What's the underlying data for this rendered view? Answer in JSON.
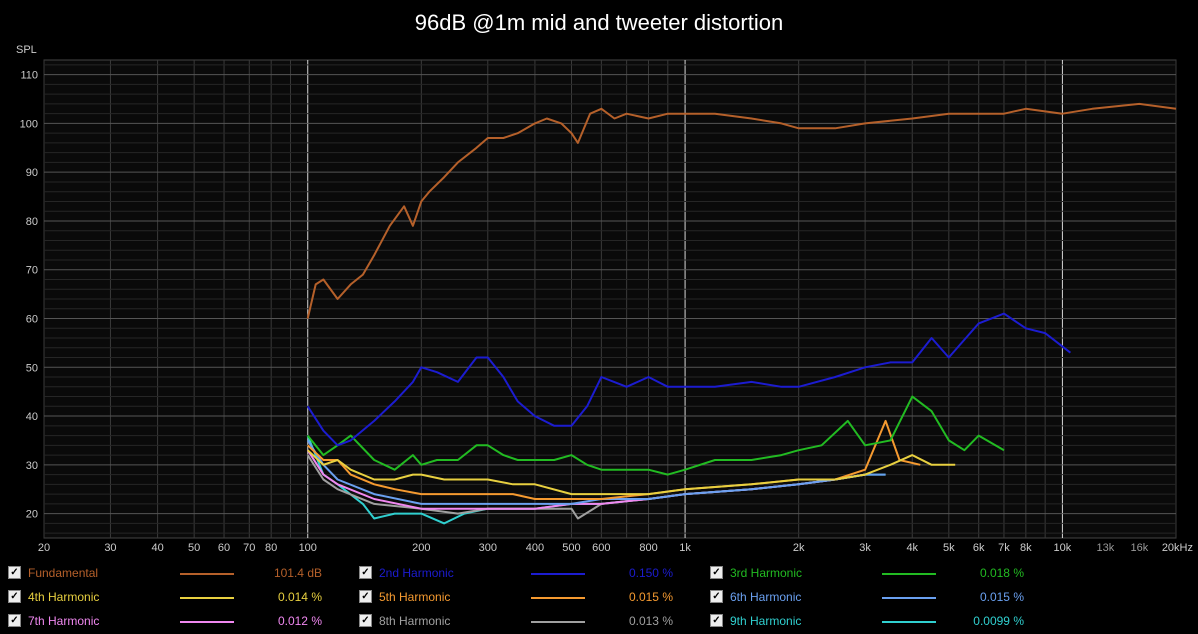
{
  "chart_data": {
    "type": "line",
    "title": "96dB @1m mid and tweeter distortion",
    "ylabel": "SPL",
    "xlabel": "",
    "x_scale": "log",
    "xlim": [
      20,
      20000
    ],
    "ylim": [
      15,
      113
    ],
    "grid": true,
    "x_ticks": [
      "20",
      "30",
      "40",
      "50",
      "60",
      "70",
      "80",
      "100",
      "200",
      "300",
      "400",
      "500",
      "600",
      "800",
      "1k",
      "2k",
      "3k",
      "4k",
      "5k",
      "6k",
      "7k",
      "8k",
      "10k",
      "13k",
      "16k",
      "20kHz"
    ],
    "y_ticks": [
      "20",
      "30",
      "40",
      "50",
      "60",
      "70",
      "80",
      "90",
      "100",
      "110"
    ],
    "series": [
      {
        "name": "Fundamental",
        "color": "#b5602a",
        "value": "101.4 dB",
        "x": [
          100,
          105,
          110,
          120,
          130,
          140,
          150,
          165,
          180,
          190,
          200,
          210,
          230,
          250,
          280,
          300,
          330,
          360,
          400,
          430,
          470,
          500,
          520,
          560,
          600,
          650,
          700,
          800,
          900,
          1000,
          1200,
          1500,
          1800,
          2000,
          2500,
          3000,
          4000,
          5000,
          6000,
          7000,
          8000,
          10000,
          12000,
          16000,
          20000
        ],
        "y": [
          60,
          67,
          68,
          64,
          67,
          69,
          73,
          79,
          83,
          79,
          84,
          86,
          89,
          92,
          95,
          97,
          97,
          98,
          100,
          101,
          100,
          98,
          96,
          102,
          103,
          101,
          102,
          101,
          102,
          102,
          102,
          101,
          100,
          99,
          99,
          100,
          101,
          102,
          102,
          102,
          103,
          102,
          103,
          104,
          103
        ]
      },
      {
        "name": "2nd Harmonic",
        "color": "#1c1cd0",
        "value": "0.150 %",
        "x": [
          100,
          110,
          120,
          130,
          150,
          170,
          190,
          200,
          220,
          250,
          280,
          300,
          330,
          360,
          400,
          450,
          500,
          550,
          600,
          700,
          800,
          900,
          1000,
          1200,
          1500,
          1800,
          2000,
          2500,
          3000,
          3500,
          4000,
          4500,
          5000,
          6000,
          7000,
          8000,
          9000,
          10500
        ],
        "y": [
          42,
          37,
          34,
          35,
          39,
          43,
          47,
          50,
          49,
          47,
          52,
          52,
          48,
          43,
          40,
          38,
          38,
          42,
          48,
          46,
          48,
          46,
          46,
          46,
          47,
          46,
          46,
          48,
          50,
          51,
          51,
          56,
          52,
          59,
          61,
          58,
          57,
          53
        ]
      },
      {
        "name": "3rd Harmonic",
        "color": "#22bb22",
        "value": "0.018 %",
        "x": [
          100,
          110,
          120,
          130,
          150,
          170,
          190,
          200,
          220,
          250,
          280,
          300,
          330,
          360,
          400,
          450,
          500,
          550,
          600,
          700,
          800,
          900,
          1000,
          1200,
          1500,
          1800,
          2000,
          2300,
          2700,
          3000,
          3500,
          4000,
          4500,
          5000,
          5500,
          6000,
          7000
        ],
        "y": [
          36,
          32,
          34,
          36,
          31,
          29,
          32,
          30,
          31,
          31,
          34,
          34,
          32,
          31,
          31,
          31,
          32,
          30,
          29,
          29,
          29,
          28,
          29,
          31,
          31,
          32,
          33,
          34,
          39,
          34,
          35,
          44,
          41,
          35,
          33,
          36,
          33
        ]
      },
      {
        "name": "4th Harmonic",
        "color": "#e8d040",
        "value": "0.014 %",
        "x": [
          100,
          110,
          120,
          130,
          150,
          170,
          190,
          200,
          230,
          260,
          300,
          350,
          400,
          500,
          600,
          800,
          1000,
          1500,
          2000,
          2500,
          3000,
          3500,
          4000,
          4500,
          5200
        ],
        "y": [
          33,
          30,
          31,
          29,
          27,
          27,
          28,
          28,
          27,
          27,
          27,
          26,
          26,
          24,
          24,
          24,
          25,
          26,
          27,
          27,
          28,
          30,
          32,
          30,
          30
        ]
      },
      {
        "name": "5th Harmonic",
        "color": "#f59a30",
        "value": "0.015 %",
        "x": [
          100,
          110,
          120,
          130,
          150,
          170,
          200,
          230,
          260,
          300,
          350,
          400,
          500,
          600,
          800,
          1000,
          1500,
          2000,
          2500,
          3000,
          3400,
          3700,
          4200
        ],
        "y": [
          34,
          31,
          31,
          28,
          26,
          25,
          24,
          24,
          24,
          24,
          24,
          23,
          23,
          23,
          24,
          25,
          26,
          27,
          27,
          29,
          39,
          31,
          30
        ]
      },
      {
        "name": "6th Harmonic",
        "color": "#6aa0f0",
        "value": "0.015 %",
        "x": [
          100,
          110,
          120,
          150,
          200,
          250,
          300,
          400,
          500,
          600,
          800,
          1000,
          1500,
          2000,
          2500,
          3000,
          3400
        ],
        "y": [
          35,
          30,
          27,
          24,
          22,
          22,
          22,
          22,
          22,
          23,
          23,
          24,
          25,
          26,
          27,
          28,
          28
        ]
      },
      {
        "name": "7th Harmonic",
        "color": "#f088f0",
        "value": "0.012 %",
        "x": [
          100,
          110,
          120,
          150,
          200,
          250,
          300,
          400,
          500,
          600,
          800,
          1000,
          1500,
          2000,
          2500,
          3000
        ],
        "y": [
          33,
          28,
          26,
          23,
          21,
          21,
          21,
          21,
          22,
          22,
          23,
          24,
          25,
          26,
          27,
          28
        ]
      },
      {
        "name": "8th Harmonic",
        "color": "#a0a0a0",
        "value": "0.013 %",
        "x": [
          100,
          110,
          120,
          150,
          200,
          250,
          300,
          400,
          500,
          520,
          600,
          800,
          1000,
          1500,
          2000,
          2500,
          3000
        ],
        "y": [
          32,
          27,
          25,
          22,
          21,
          20,
          21,
          21,
          21,
          19,
          22,
          23,
          24,
          25,
          26,
          27,
          28
        ]
      },
      {
        "name": "9th Harmonic",
        "color": "#30d0d0",
        "value": "0.0099 %",
        "x": [
          100,
          110,
          120,
          140,
          150,
          170,
          200,
          230,
          260,
          300,
          400,
          500,
          600,
          800,
          1000,
          1500,
          2000,
          2500,
          3000,
          3400
        ],
        "y": [
          36,
          28,
          26,
          22,
          19,
          20,
          20,
          18,
          20,
          21,
          21,
          22,
          22,
          23,
          24,
          25,
          26,
          27,
          28,
          28
        ]
      }
    ]
  }
}
